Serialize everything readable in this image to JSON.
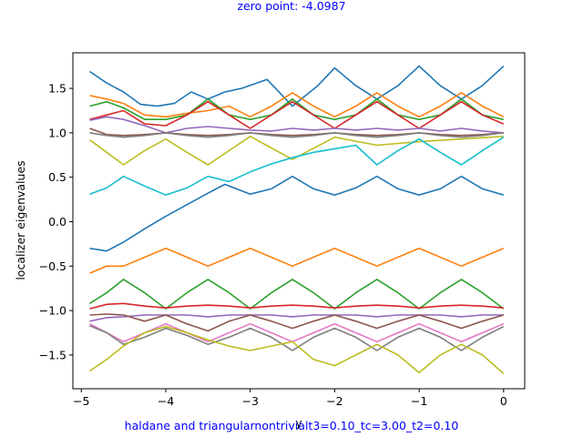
{
  "chart_data": {
    "type": "line",
    "title": "zero point: -4.0987",
    "subtitle": "haldane and triangularnontrivialt3=0.10_tc=3.00_t2=0.10",
    "xlabel": "y",
    "ylabel": "localizer eigenvalues",
    "xlim": [
      -5.1,
      0.25
    ],
    "ylim": [
      -1.88,
      1.9
    ],
    "xticks": [
      -5,
      -4,
      -3,
      -2,
      -1,
      0
    ],
    "xtick_labels": [
      "−5",
      "−4",
      "−3",
      "−2",
      "−1",
      "0"
    ],
    "yticks": [
      -1.5,
      -1.0,
      -0.5,
      0.0,
      0.5,
      1.0,
      1.5
    ],
    "ytick_labels": [
      "−1.5",
      "−1.0",
      "−0.5",
      "0.0",
      "0.5",
      "1.0",
      "1.5"
    ],
    "grid": false,
    "series": [
      {
        "color": "#1f77b4",
        "x": [
          -4.9,
          -4.7,
          -4.5,
          -4.25,
          -4.0,
          -3.5,
          -3.3,
          -3.0,
          -2.75,
          -2.5,
          -2.25,
          -2.0,
          -1.75,
          -1.5,
          -1.25,
          -1.0,
          -0.75,
          -0.5,
          -0.25,
          0.0
        ],
        "y": [
          -0.3,
          -0.33,
          -0.23,
          -0.08,
          0.06,
          0.32,
          0.42,
          0.31,
          0.37,
          0.51,
          0.37,
          0.3,
          0.38,
          0.51,
          0.37,
          0.3,
          0.37,
          0.51,
          0.37,
          0.3
        ]
      },
      {
        "color": "#1f77b4",
        "x": [
          -4.9,
          -4.7,
          -4.5,
          -4.3,
          -4.1,
          -3.9,
          -3.7,
          -3.5,
          -3.3,
          -3.1,
          -2.8,
          -2.5,
          -2.2,
          -2.0,
          -1.75,
          -1.5,
          -1.25,
          -1.0,
          -0.75,
          -0.5,
          -0.25,
          0.0
        ],
        "y": [
          1.69,
          1.56,
          1.46,
          1.32,
          1.3,
          1.33,
          1.46,
          1.38,
          1.46,
          1.5,
          1.6,
          1.3,
          1.53,
          1.73,
          1.53,
          1.38,
          1.53,
          1.75,
          1.53,
          1.38,
          1.53,
          1.75
        ]
      },
      {
        "color": "#ff7f0e",
        "x": [
          -4.9,
          -4.7,
          -4.5,
          -4.25,
          -4.0,
          -3.75,
          -3.5,
          -3.25,
          -3.0,
          -2.75,
          -2.5,
          -2.25,
          -2.0,
          -1.75,
          -1.5,
          -1.25,
          -1.0,
          -0.75,
          -0.5,
          -0.25,
          0.0
        ],
        "y": [
          1.42,
          1.38,
          1.33,
          1.2,
          1.18,
          1.22,
          1.25,
          1.3,
          1.18,
          1.3,
          1.45,
          1.3,
          1.18,
          1.3,
          1.45,
          1.3,
          1.18,
          1.3,
          1.45,
          1.3,
          1.18
        ]
      },
      {
        "color": "#ff7f0e",
        "x": [
          -4.9,
          -4.7,
          -4.5,
          -4.25,
          -4.0,
          -3.75,
          -3.5,
          -3.25,
          -3.0,
          -2.75,
          -2.5,
          -2.25,
          -2.0,
          -1.75,
          -1.5,
          -1.25,
          -1.0,
          -0.75,
          -0.5,
          -0.25,
          0.0
        ],
        "y": [
          -0.58,
          -0.5,
          -0.5,
          -0.4,
          -0.3,
          -0.4,
          -0.5,
          -0.4,
          -0.3,
          -0.4,
          -0.5,
          -0.4,
          -0.3,
          -0.4,
          -0.5,
          -0.4,
          -0.3,
          -0.4,
          -0.5,
          -0.4,
          -0.3
        ]
      },
      {
        "color": "#2ca02c",
        "x": [
          -4.9,
          -4.7,
          -4.5,
          -4.25,
          -4.0,
          -3.75,
          -3.5,
          -3.25,
          -3.0,
          -2.75,
          -2.5,
          -2.25,
          -2.0,
          -1.75,
          -1.5,
          -1.25,
          -1.0,
          -0.75,
          -0.5,
          -0.25,
          0.0
        ],
        "y": [
          1.3,
          1.35,
          1.28,
          1.15,
          1.15,
          1.2,
          1.38,
          1.2,
          1.15,
          1.2,
          1.38,
          1.2,
          1.15,
          1.2,
          1.38,
          1.2,
          1.15,
          1.2,
          1.38,
          1.2,
          1.15
        ]
      },
      {
        "color": "#2ca02c",
        "x": [
          -4.9,
          -4.7,
          -4.5,
          -4.25,
          -4.0,
          -3.75,
          -3.5,
          -3.25,
          -3.0,
          -2.75,
          -2.5,
          -2.25,
          -2.0,
          -1.75,
          -1.5,
          -1.25,
          -1.0,
          -0.75,
          -0.5,
          -0.25,
          0.0
        ],
        "y": [
          -0.92,
          -0.8,
          -0.65,
          -0.8,
          -0.98,
          -0.8,
          -0.65,
          -0.8,
          -0.98,
          -0.8,
          -0.65,
          -0.8,
          -0.98,
          -0.8,
          -0.65,
          -0.8,
          -0.98,
          -0.8,
          -0.65,
          -0.8,
          -0.98
        ]
      },
      {
        "color": "#d62728",
        "x": [
          -4.9,
          -4.7,
          -4.5,
          -4.25,
          -4.0,
          -3.75,
          -3.5,
          -3.25,
          -3.0,
          -2.75,
          -2.5,
          -2.25,
          -2.0,
          -1.75,
          -1.5,
          -1.25,
          -1.0,
          -0.75,
          -0.5,
          -0.25,
          0.0
        ],
        "y": [
          1.15,
          1.2,
          1.25,
          1.1,
          1.08,
          1.2,
          1.35,
          1.2,
          1.05,
          1.2,
          1.35,
          1.2,
          1.05,
          1.2,
          1.35,
          1.2,
          1.05,
          1.2,
          1.35,
          1.2,
          1.1
        ]
      },
      {
        "color": "#d62728",
        "x": [
          -4.9,
          -4.7,
          -4.5,
          -4.25,
          -4.0,
          -3.75,
          -3.5,
          -3.25,
          -3.0,
          -2.75,
          -2.5,
          -2.25,
          -2.0,
          -1.75,
          -1.5,
          -1.25,
          -1.0,
          -0.75,
          -0.5,
          -0.25,
          0.0
        ],
        "y": [
          -0.98,
          -0.93,
          -0.92,
          -0.95,
          -0.97,
          -0.95,
          -0.94,
          -0.95,
          -0.97,
          -0.95,
          -0.94,
          -0.95,
          -0.97,
          -0.95,
          -0.94,
          -0.95,
          -0.97,
          -0.95,
          -0.94,
          -0.95,
          -0.97
        ]
      },
      {
        "color": "#9467bd",
        "x": [
          -4.9,
          -4.7,
          -4.5,
          -4.25,
          -4.0,
          -3.75,
          -3.5,
          -3.25,
          -3.0,
          -2.75,
          -2.5,
          -2.25,
          -2.0,
          -1.75,
          -1.5,
          -1.25,
          -1.0,
          -0.75,
          -0.5,
          -0.25,
          0.0
        ],
        "y": [
          1.14,
          1.18,
          1.15,
          1.08,
          1.0,
          1.05,
          1.07,
          1.05,
          1.03,
          1.02,
          1.05,
          1.03,
          1.05,
          1.03,
          1.05,
          1.03,
          1.05,
          1.02,
          1.05,
          1.02,
          1.0
        ]
      },
      {
        "color": "#9467bd",
        "x": [
          -4.9,
          -4.7,
          -4.5,
          -4.25,
          -4.0,
          -3.75,
          -3.5,
          -3.25,
          -3.0,
          -2.75,
          -2.5,
          -2.25,
          -2.0,
          -1.75,
          -1.5,
          -1.25,
          -1.0,
          -0.75,
          -0.5,
          -0.25,
          0.0
        ],
        "y": [
          -1.12,
          -1.08,
          -1.07,
          -1.05,
          -1.05,
          -1.05,
          -1.07,
          -1.05,
          -1.05,
          -1.05,
          -1.07,
          -1.05,
          -1.05,
          -1.05,
          -1.07,
          -1.05,
          -1.05,
          -1.05,
          -1.07,
          -1.05,
          -1.05
        ]
      },
      {
        "color": "#8c564b",
        "x": [
          -4.9,
          -4.7,
          -4.5,
          -4.25,
          -4.0,
          -3.75,
          -3.5,
          -3.25,
          -3.0,
          -2.75,
          -2.5,
          -2.25,
          -2.0,
          -1.75,
          -1.5,
          -1.25,
          -1.0,
          -0.75,
          -0.5,
          -0.25,
          0.0
        ],
        "y": [
          1.05,
          0.98,
          0.97,
          0.98,
          1.0,
          0.98,
          0.97,
          0.98,
          1.0,
          0.98,
          0.97,
          0.98,
          1.0,
          0.98,
          0.97,
          0.98,
          1.0,
          0.98,
          0.97,
          0.98,
          1.0
        ]
      },
      {
        "color": "#8c564b",
        "x": [
          -4.9,
          -4.7,
          -4.5,
          -4.25,
          -4.0,
          -3.75,
          -3.5,
          -3.25,
          -3.0,
          -2.75,
          -2.5,
          -2.25,
          -2.0,
          -1.75,
          -1.5,
          -1.25,
          -1.0,
          -0.75,
          -0.5,
          -0.25,
          0.0
        ],
        "y": [
          -1.05,
          -1.04,
          -1.05,
          -1.12,
          -1.05,
          -1.15,
          -1.23,
          -1.12,
          -1.05,
          -1.12,
          -1.2,
          -1.12,
          -1.05,
          -1.12,
          -1.2,
          -1.12,
          -1.05,
          -1.12,
          -1.2,
          -1.12,
          -1.05
        ]
      },
      {
        "color": "#e377c2",
        "x": [
          -4.9,
          -4.7,
          -4.5,
          -4.25,
          -4.0,
          -3.75,
          -3.5,
          -3.25,
          -3.0,
          -2.75,
          -2.5,
          -2.25,
          -2.0,
          -1.75,
          -1.5,
          -1.25,
          -1.0,
          -0.75,
          -0.5,
          -0.25,
          0.0
        ],
        "y": [
          -1.15,
          -1.25,
          -1.35,
          -1.25,
          -1.15,
          -1.25,
          -1.35,
          -1.25,
          -1.15,
          -1.25,
          -1.35,
          -1.25,
          -1.15,
          -1.25,
          -1.35,
          -1.25,
          -1.15,
          -1.25,
          -1.35,
          -1.25,
          -1.15
        ]
      },
      {
        "color": "#7f7f7f",
        "x": [
          -4.9,
          -4.7,
          -4.5,
          -4.25,
          -4.0,
          -3.75,
          -3.5,
          -3.25,
          -3.0,
          -2.75,
          -2.5,
          -2.25,
          -2.0,
          -1.75,
          -1.5,
          -1.25,
          -1.0,
          -0.75,
          -0.5,
          -0.25,
          0.0
        ],
        "y": [
          1.0,
          0.97,
          0.95,
          0.97,
          1.0,
          0.97,
          0.95,
          0.97,
          1.0,
          0.97,
          0.95,
          0.97,
          1.0,
          0.97,
          0.95,
          0.97,
          1.0,
          0.97,
          0.95,
          0.97,
          1.0
        ]
      },
      {
        "color": "#7f7f7f",
        "x": [
          -4.9,
          -4.7,
          -4.5,
          -4.25,
          -4.0,
          -3.75,
          -3.5,
          -3.25,
          -3.0,
          -2.75,
          -2.5,
          -2.25,
          -2.0,
          -1.75,
          -1.5,
          -1.25,
          -1.0,
          -0.75,
          -0.5,
          -0.25,
          0.0
        ],
        "y": [
          -1.17,
          -1.25,
          -1.38,
          -1.3,
          -1.2,
          -1.28,
          -1.38,
          -1.3,
          -1.2,
          -1.3,
          -1.45,
          -1.3,
          -1.2,
          -1.3,
          -1.45,
          -1.3,
          -1.2,
          -1.3,
          -1.45,
          -1.3,
          -1.18
        ]
      },
      {
        "color": "#bcbd22",
        "x": [
          -4.9,
          -4.7,
          -4.5,
          -4.25,
          -4.0,
          -3.75,
          -3.5,
          -3.25,
          -3.0,
          -2.75,
          -2.5,
          -2.0,
          -1.5,
          -1.0,
          -0.5,
          0.0
        ],
        "y": [
          0.92,
          0.78,
          0.64,
          0.8,
          0.93,
          0.78,
          0.64,
          0.8,
          0.96,
          0.83,
          0.7,
          0.95,
          0.86,
          0.9,
          0.93,
          0.96
        ]
      },
      {
        "color": "#bcbd22",
        "x": [
          -4.9,
          -4.7,
          -4.5,
          -4.25,
          -4.0,
          -3.75,
          -3.5,
          -3.25,
          -3.0,
          -2.75,
          -2.5,
          -2.25,
          -2.0,
          -1.75,
          -1.5,
          -1.25,
          -1.0,
          -0.75,
          -0.5,
          -0.25,
          0.0
        ],
        "y": [
          -1.68,
          -1.55,
          -1.4,
          -1.25,
          -1.18,
          -1.25,
          -1.33,
          -1.4,
          -1.45,
          -1.4,
          -1.35,
          -1.55,
          -1.62,
          -1.5,
          -1.38,
          -1.5,
          -1.7,
          -1.5,
          -1.38,
          -1.5,
          -1.71
        ]
      },
      {
        "color": "#17becf",
        "x": [
          -4.9,
          -4.7,
          -4.5,
          -4.25,
          -4.0,
          -3.75,
          -3.5,
          -3.25,
          -3.0,
          -2.75,
          -2.5,
          -2.25,
          -2.0,
          -1.75,
          -1.5,
          -1.25,
          -1.0,
          -0.75,
          -0.5,
          -0.25,
          0.0
        ],
        "y": [
          0.31,
          0.38,
          0.51,
          0.4,
          0.3,
          0.38,
          0.51,
          0.45,
          0.56,
          0.65,
          0.72,
          0.78,
          0.82,
          0.86,
          0.64,
          0.8,
          0.93,
          0.78,
          0.64,
          0.8,
          0.95
        ]
      }
    ]
  }
}
